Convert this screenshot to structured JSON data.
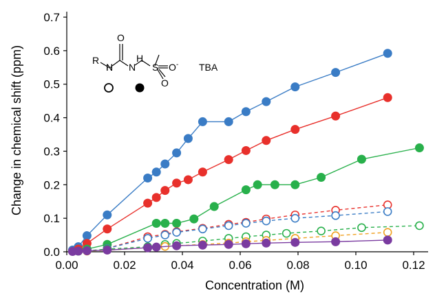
{
  "chart_data": {
    "type": "scatter",
    "title": "",
    "xlabel": "Concentration (M)",
    "ylabel": "Change in chemical shift (ppm)",
    "xlim": [
      0,
      0.125
    ],
    "ylim": [
      0,
      0.7
    ],
    "xticks": [
      "0.00",
      "0.02",
      "0.04",
      "0.06",
      "0.08",
      "0.10",
      "0.12"
    ],
    "yticks": [
      "0.0",
      "0.1",
      "0.2",
      "0.3",
      "0.4",
      "0.5",
      "0.6",
      "0.7"
    ],
    "grid": false,
    "legend": "structure inset top-left: open circle = first NH, filled circle = second NH",
    "structure": {
      "r_label": "R",
      "nh1": "H",
      "n1": "N",
      "o_top": "O",
      "nh2": "H",
      "n2": "N",
      "s": "S",
      "o_s1": "O",
      "o_s2": "O",
      "charge": "-",
      "counterion": "TBA"
    },
    "series": [
      {
        "color": "#3a7cc5",
        "style": "solid",
        "marker": "filled",
        "x": [
          0.002,
          0.004,
          0.007,
          0.014,
          0.028,
          0.031,
          0.034,
          0.038,
          0.042,
          0.047,
          0.056,
          0.062,
          0.069,
          0.079,
          0.093,
          0.111
        ],
        "y": [
          0.005,
          0.015,
          0.048,
          0.11,
          0.22,
          0.238,
          0.262,
          0.295,
          0.338,
          0.388,
          0.388,
          0.418,
          0.448,
          0.492,
          0.535,
          0.592
        ]
      },
      {
        "color": "#e8302b",
        "style": "solid",
        "marker": "filled",
        "x": [
          0.004,
          0.007,
          0.014,
          0.028,
          0.031,
          0.034,
          0.038,
          0.042,
          0.047,
          0.056,
          0.062,
          0.069,
          0.079,
          0.093,
          0.111
        ],
        "y": [
          0.008,
          0.025,
          0.068,
          0.145,
          0.162,
          0.183,
          0.205,
          0.215,
          0.238,
          0.275,
          0.302,
          0.332,
          0.365,
          0.405,
          0.46
        ]
      },
      {
        "color": "#28b04b",
        "style": "solid",
        "marker": "filled",
        "x": [
          0.004,
          0.007,
          0.014,
          0.031,
          0.034,
          0.038,
          0.044,
          0.051,
          0.062,
          0.066,
          0.072,
          0.079,
          0.088,
          0.102,
          0.122
        ],
        "y": [
          0.002,
          0.008,
          0.022,
          0.085,
          0.085,
          0.085,
          0.098,
          0.135,
          0.185,
          0.2,
          0.2,
          0.2,
          0.222,
          0.276,
          0.31
        ]
      },
      {
        "color": "#e8302b",
        "style": "dashed",
        "marker": "open",
        "x": [
          0.014,
          0.028,
          0.034,
          0.038,
          0.047,
          0.056,
          0.062,
          0.069,
          0.079,
          0.093,
          0.111
        ],
        "y": [
          0.01,
          0.045,
          0.052,
          0.06,
          0.07,
          0.082,
          0.088,
          0.098,
          0.11,
          0.124,
          0.14
        ]
      },
      {
        "color": "#3a7cc5",
        "style": "dashed",
        "marker": "open",
        "x": [
          0.014,
          0.028,
          0.034,
          0.038,
          0.047,
          0.056,
          0.062,
          0.069,
          0.079,
          0.093,
          0.111
        ],
        "y": [
          0.01,
          0.04,
          0.05,
          0.058,
          0.068,
          0.078,
          0.085,
          0.092,
          0.1,
          0.108,
          0.12
        ]
      },
      {
        "color": "#28b04b",
        "style": "dashed",
        "marker": "open",
        "x": [
          0.007,
          0.014,
          0.028,
          0.034,
          0.038,
          0.047,
          0.056,
          0.062,
          0.069,
          0.076,
          0.088,
          0.102,
          0.122
        ],
        "y": [
          0.003,
          0.008,
          0.015,
          0.022,
          0.025,
          0.032,
          0.04,
          0.045,
          0.05,
          0.055,
          0.062,
          0.072,
          0.078
        ]
      },
      {
        "color": "#f0a020",
        "style": "dashed",
        "marker": "open",
        "x": [
          0.007,
          0.014,
          0.028,
          0.034,
          0.038,
          0.047,
          0.056,
          0.062,
          0.069,
          0.079,
          0.093,
          0.111
        ],
        "y": [
          0.002,
          0.005,
          0.012,
          0.016,
          0.018,
          0.022,
          0.026,
          0.03,
          0.034,
          0.04,
          0.048,
          0.058
        ]
      },
      {
        "color": "#7a3ba0",
        "style": "solid",
        "marker": "filled",
        "x": [
          0.002,
          0.004,
          0.007,
          0.014,
          0.028,
          0.031,
          0.038,
          0.047,
          0.056,
          0.062,
          0.069,
          0.079,
          0.093,
          0.111
        ],
        "y": [
          0.001,
          0.002,
          0.003,
          0.005,
          0.012,
          0.014,
          0.018,
          0.02,
          0.022,
          0.024,
          0.026,
          0.028,
          0.03,
          0.035
        ]
      }
    ]
  }
}
